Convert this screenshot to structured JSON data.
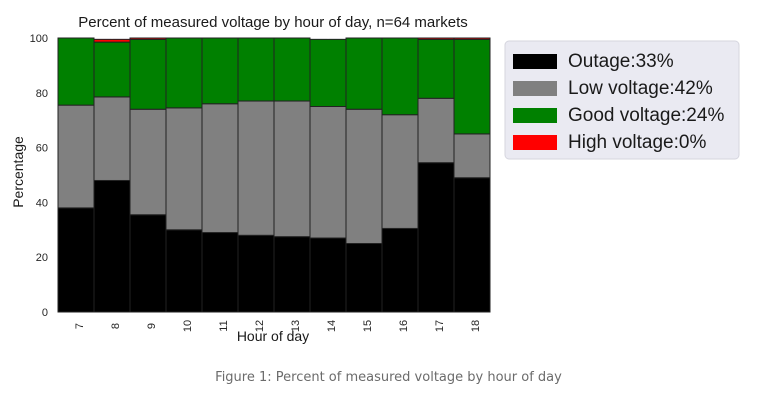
{
  "figure": {
    "caption": "Figure 1: Percent of measured voltage by hour of day"
  },
  "chart_data": {
    "type": "bar",
    "stacked": true,
    "title": "Percent of measured voltage by hour of day, n=64 markets",
    "xlabel": "Hour of day",
    "ylabel": "Percentage",
    "ylim": [
      0,
      100
    ],
    "yticks": [
      0,
      20,
      40,
      60,
      80,
      100
    ],
    "categories": [
      "7",
      "8",
      "9",
      "10",
      "11",
      "12",
      "13",
      "14",
      "15",
      "16",
      "17",
      "18"
    ],
    "grid": true,
    "legend_position": "right",
    "series": [
      {
        "name": "Outage:33%",
        "color": "#000000",
        "values": [
          38,
          48,
          35.5,
          30,
          29,
          28,
          27.5,
          27,
          25,
          30.5,
          54.5,
          49
        ]
      },
      {
        "name": "Low voltage:42%",
        "color": "#808080",
        "values": [
          37.5,
          30.5,
          38.5,
          44.5,
          47,
          49,
          49.5,
          48,
          49,
          41.5,
          23.5,
          16
        ]
      },
      {
        "name": "Good voltage:24%",
        "color": "#008000",
        "values": [
          24.5,
          20,
          25.5,
          25.5,
          24,
          23,
          23,
          24.5,
          26,
          28,
          21.5,
          34.5
        ]
      },
      {
        "name": "High voltage:0%",
        "color": "#ff0000",
        "values": [
          0,
          1,
          0.5,
          0,
          0,
          0,
          0,
          0,
          0,
          0,
          0.5,
          0.5
        ]
      }
    ]
  }
}
